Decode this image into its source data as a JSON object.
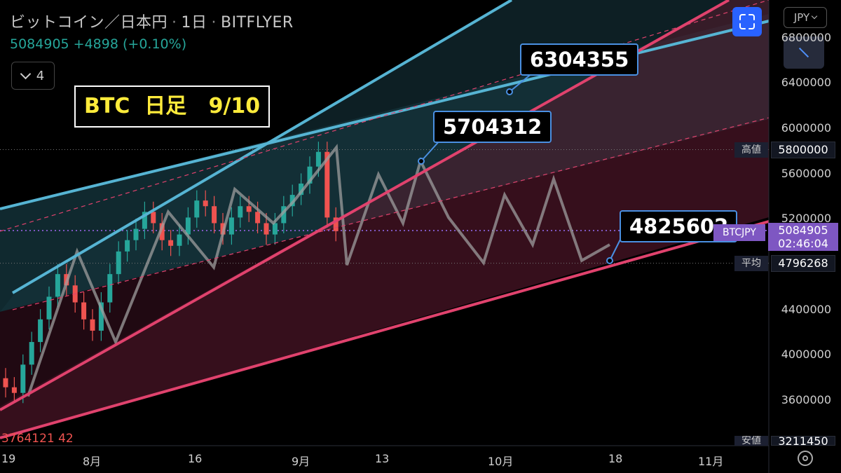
{
  "header": {
    "symbol": "ビットコイン／日本円",
    "timeframe": "1日",
    "exchange": "BITFLYER",
    "price": "5084905",
    "change": "+4898",
    "change_pct": "(+0.10%)"
  },
  "indicator_toggle": {
    "count": "4"
  },
  "title_box": "BTC  日足   9/10",
  "currency_button": "JPY",
  "callouts": {
    "target_high": "6304355",
    "target_mid": "5704312",
    "target_low": "4825602"
  },
  "y_axis": {
    "ticks": [
      "6800000",
      "6400000",
      "6000000",
      "5600000",
      "5200000",
      "4400000",
      "4000000",
      "3600000"
    ]
  },
  "price_tags": {
    "high_label": "高値",
    "high_value": "5800000",
    "avg_label": "平均",
    "avg_value": "4796268",
    "low_label": "安値",
    "low_value": "3211450",
    "last_name": "BTCJPY",
    "last_value": "5084905",
    "last_countdown": "02:46:04"
  },
  "x_axis": {
    "ticks": [
      "19",
      "8月",
      "16",
      "9月",
      "13",
      "10月",
      "18",
      "11月"
    ]
  },
  "low_marker": "3764121 42",
  "colors": {
    "up": "#26a69a",
    "down": "#ef5350",
    "cyan_line": "#56b4d3",
    "pink_line": "#e0426d",
    "projection": "#9e9e9e",
    "callout_border": "#4a90e2",
    "last_price": "#7e57c2",
    "title_text": "#ffeb3b"
  },
  "chart_data": {
    "type": "line",
    "title": "BTC 日足 9/10",
    "ylabel": "JPY",
    "ylim": [
      3200000,
      6900000
    ],
    "x_ticks": [
      "19",
      "8月",
      "16",
      "9月",
      "13",
      "10月",
      "18",
      "11月"
    ],
    "candles_summary": {
      "series": "BTCJPY daily",
      "approx_closes": [
        3700000,
        3650000,
        3900000,
        4100000,
        4300000,
        4500000,
        4700000,
        4600000,
        4450000,
        4300000,
        4200000,
        4450000,
        4700000,
        4900000,
        5000000,
        5100000,
        5250000,
        5150000,
        5000000,
        4950000,
        5050000,
        5200000,
        5350000,
        5300000,
        5150000,
        5050000,
        5200000,
        5300000,
        5250000,
        5150000,
        5050000,
        5150000,
        5300000,
        5400000,
        5500000,
        5650000,
        5780000,
        5200000,
        5080000
      ],
      "high": 5800000,
      "low": 3211450
    },
    "projection_path": [
      5080000,
      4800000,
      5550000,
      5150000,
      5700000,
      5300000,
      4820000,
      5450000,
      4950000,
      5500000,
      4900000,
      4825602
    ],
    "targets": [
      6304355,
      5704312,
      4825602
    ],
    "last_price": 5084905,
    "average": 4796268
  }
}
